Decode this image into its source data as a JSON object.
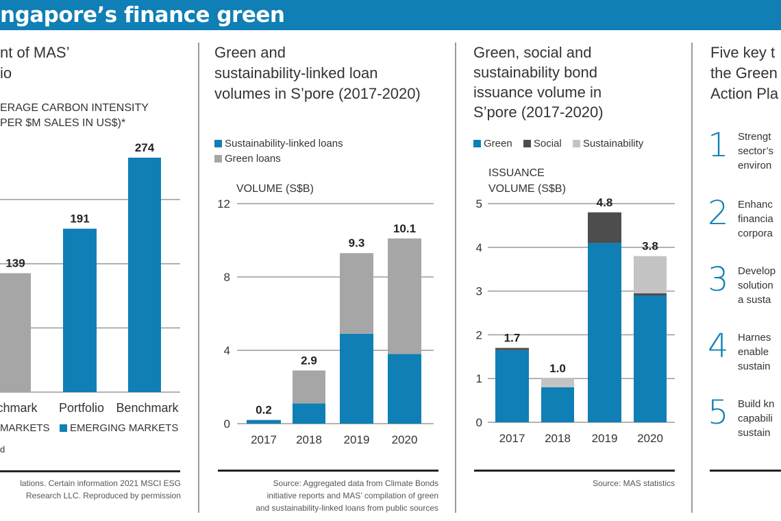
{
  "banner": {
    "title": "ngapore’s finance green"
  },
  "colors": {
    "blue": "#0f7fb5",
    "gray": "#a6a6a6",
    "dark": "#4d4d4d",
    "light": "#c4c4c4"
  },
  "panel1": {
    "title_lines": [
      "nt of MAS’",
      "io"
    ],
    "axis_lines": [
      "ERAGE CARBON INTENSITY",
      "PER $M SALES IN US$)*"
    ],
    "legend": [
      "MARKETS",
      "EMERGING MARKETS"
    ],
    "footnote": "d",
    "source_lines": [
      "lations. Certain information 2021 MSCI ESG",
      "Research LLC. Reproduced by permission"
    ]
  },
  "panel2": {
    "title_lines": [
      "Green and",
      "sustainability-linked loan",
      "volumes in S’pore (2017-2020)"
    ],
    "source_lines": [
      "Source: Aggregated data from Climate Bonds",
      "initiative reports and MAS’ compilation of green",
      "and sustainability-linked loans from public sources"
    ]
  },
  "panel3": {
    "title_lines": [
      "Green, social and",
      "sustainability bond",
      "issuance volume in",
      "S’pore (2017-2020)"
    ],
    "source_lines": [
      "Source: MAS statistics"
    ]
  },
  "panel4": {
    "title_lines": [
      "Five key t",
      "the Green",
      "Action Pla"
    ],
    "items": [
      {
        "num": "1",
        "lines": [
          "Strengt",
          "sector’s",
          "environ"
        ]
      },
      {
        "num": "2",
        "lines": [
          "Enhanc",
          "financia",
          "corpora"
        ]
      },
      {
        "num": "3",
        "lines": [
          "Develop",
          "solution",
          "a susta"
        ]
      },
      {
        "num": "4",
        "lines": [
          "Harnes",
          "enable",
          "sustain"
        ]
      },
      {
        "num": "5",
        "lines": [
          "Build kn",
          "capabili",
          "sustain"
        ]
      }
    ]
  },
  "chart_data": [
    {
      "type": "bar",
      "ylabel": "ERAGE CARBON INTENSITY PER $M SALES IN US$)*",
      "categories": [
        "nchmark",
        "Portfolio",
        "Benchmark"
      ],
      "values": [
        139,
        191,
        274
      ],
      "data_labels": [
        "139",
        "191",
        "274"
      ],
      "bar_colors": [
        "#a6a6a6",
        "#0f7fb5",
        "#0f7fb5"
      ],
      "legend": [
        "MARKETS",
        "EMERGING MARKETS"
      ],
      "grid": true,
      "gridlines": [
        75,
        150,
        225
      ],
      "ylim": [
        0,
        290
      ]
    },
    {
      "type": "bar",
      "stacked": true,
      "ylabel": "VOLUME (S$B)",
      "categories": [
        "2017",
        "2018",
        "2019",
        "2020"
      ],
      "series": [
        {
          "name": "Sustainability-linked loans",
          "color": "#0f7fb5",
          "values": [
            0.2,
            1.1,
            4.9,
            3.8
          ]
        },
        {
          "name": "Green loans",
          "color": "#a6a6a6",
          "values": [
            0,
            1.8,
            4.4,
            6.3
          ]
        }
      ],
      "totals": [
        "0.2",
        "2.9",
        "9.3",
        "10.1"
      ],
      "yticks": [
        0,
        4,
        8,
        12
      ],
      "ylim": [
        0,
        12
      ],
      "grid": true,
      "legend": "top-left"
    },
    {
      "type": "bar",
      "stacked": true,
      "ylabel": "ISSUANCE VOLUME (S$B)",
      "categories": [
        "2017",
        "2018",
        "2019",
        "2020"
      ],
      "series": [
        {
          "name": "Green",
          "color": "#0f7fb5",
          "values": [
            1.65,
            0.8,
            4.1,
            2.9
          ]
        },
        {
          "name": "Social",
          "color": "#4d4d4d",
          "values": [
            0.05,
            0,
            0.7,
            0.05
          ]
        },
        {
          "name": "Sustainability",
          "color": "#c4c4c4",
          "values": [
            0,
            0.2,
            0,
            0.85
          ]
        }
      ],
      "totals": [
        "1.7",
        "1.0",
        "4.8",
        "3.8"
      ],
      "yticks": [
        0,
        1,
        2,
        3,
        4,
        5
      ],
      "ylim": [
        0,
        5
      ],
      "grid": true,
      "legend": "top-left"
    }
  ]
}
